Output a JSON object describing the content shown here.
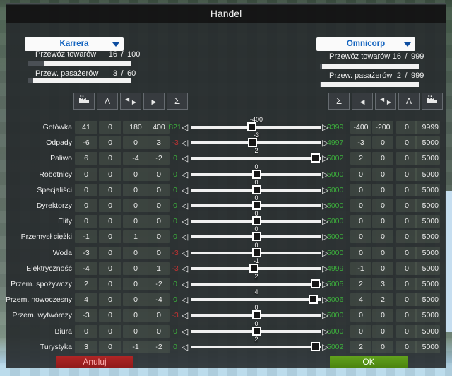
{
  "title": "Handel",
  "colors": {
    "positive_green": "#3cae3c",
    "negative_red": "#c03232",
    "accent_blue": "#1565c0",
    "cancel_red": "#a02020",
    "ok_green": "#55901a"
  },
  "left_panel": {
    "dropdown_value": "Karrera",
    "stats": [
      {
        "label": "Przewóz towarów",
        "value": "16",
        "max": "100",
        "pct": 16
      },
      {
        "label": "Przew. pasażerów",
        "value": "3",
        "max": "60",
        "pct": 5
      }
    ],
    "icons": [
      "factory",
      "compass",
      "transfer-arrows",
      "send-right",
      "sum"
    ]
  },
  "right_panel": {
    "dropdown_value": "Omnicorp",
    "stats": [
      {
        "label": "Przewóz towarów",
        "value": "16",
        "max": "999",
        "pct": 2
      },
      {
        "label": "Przew. pasażerów",
        "value": "2",
        "max": "999",
        "pct": 1
      }
    ],
    "icons": [
      "sum",
      "send-left",
      "transfer-arrows",
      "compass",
      "factory"
    ]
  },
  "rows": [
    {
      "label": "Gotówka",
      "c1": "41",
      "c2": "0",
      "c3": "180",
      "c4": "400",
      "net_l": "821",
      "sval": "-400",
      "pos": 46,
      "net_r": "9399",
      "r1": "-400",
      "r2": "-200",
      "r3": "0",
      "max": "9999"
    },
    {
      "label": "Odpady",
      "c1": "-6",
      "c2": "0",
      "c3": "0",
      "c4": "3",
      "net_l": "-3",
      "sval": "-3",
      "pos": 47,
      "net_r": "4997",
      "r1": "-3",
      "r2": "0",
      "r3": "0",
      "max": "5000"
    },
    {
      "label": "Paliwo",
      "c1": "6",
      "c2": "0",
      "c3": "-4",
      "c4": "-2",
      "net_l": "0",
      "sval": "2",
      "pos": 99,
      "net_r": "5002",
      "r1": "2",
      "r2": "0",
      "r3": "0",
      "max": "5000"
    },
    {
      "label": "Robotnicy",
      "c1": "0",
      "c2": "0",
      "c3": "0",
      "c4": "0",
      "net_l": "0",
      "sval": "0",
      "pos": 50,
      "net_r": "5000",
      "r1": "0",
      "r2": "0",
      "r3": "0",
      "max": "5000"
    },
    {
      "label": "Specjaliści",
      "c1": "0",
      "c2": "0",
      "c3": "0",
      "c4": "0",
      "net_l": "0",
      "sval": "0",
      "pos": 50,
      "net_r": "5000",
      "r1": "0",
      "r2": "0",
      "r3": "0",
      "max": "5000"
    },
    {
      "label": "Dyrektorzy",
      "c1": "0",
      "c2": "0",
      "c3": "0",
      "c4": "0",
      "net_l": "0",
      "sval": "0",
      "pos": 50,
      "net_r": "5000",
      "r1": "0",
      "r2": "0",
      "r3": "0",
      "max": "5000"
    },
    {
      "label": "Elity",
      "c1": "0",
      "c2": "0",
      "c3": "0",
      "c4": "0",
      "net_l": "0",
      "sval": "0",
      "pos": 50,
      "net_r": "5000",
      "r1": "0",
      "r2": "0",
      "r3": "0",
      "max": "5000"
    },
    {
      "label": "Przemysł ciężki",
      "c1": "-1",
      "c2": "0",
      "c3": "1",
      "c4": "0",
      "net_l": "0",
      "sval": "0",
      "pos": 50,
      "net_r": "5000",
      "r1": "0",
      "r2": "0",
      "r3": "0",
      "max": "5000"
    },
    {
      "label": "Woda",
      "c1": "-3",
      "c2": "0",
      "c3": "0",
      "c4": "0",
      "net_l": "-3",
      "sval": "0",
      "pos": 50,
      "net_r": "5000",
      "r1": "0",
      "r2": "0",
      "r3": "0",
      "max": "5000"
    },
    {
      "label": "Elektryczność",
      "c1": "-4",
      "c2": "0",
      "c3": "0",
      "c4": "1",
      "net_l": "-3",
      "sval": "-1",
      "pos": 48,
      "net_r": "4999",
      "r1": "-1",
      "r2": "0",
      "r3": "0",
      "max": "5000"
    },
    {
      "label": "Przem. spożywczy",
      "c1": "2",
      "c2": "0",
      "c3": "0",
      "c4": "-2",
      "net_l": "0",
      "sval": "2",
      "pos": 99,
      "net_r": "5005",
      "r1": "2",
      "r2": "3",
      "r3": "0",
      "max": "5000"
    },
    {
      "label": "Przem. nowoczesny",
      "c1": "4",
      "c2": "0",
      "c3": "0",
      "c4": "-4",
      "net_l": "0",
      "sval": "4",
      "pos": 97,
      "net_r": "5006",
      "r1": "4",
      "r2": "2",
      "r3": "0",
      "max": "5000"
    },
    {
      "label": "Przem. wytwórczy",
      "c1": "-3",
      "c2": "0",
      "c3": "0",
      "c4": "0",
      "net_l": "-3",
      "sval": "0",
      "pos": 50,
      "net_r": "5000",
      "r1": "0",
      "r2": "0",
      "r3": "0",
      "max": "5000"
    },
    {
      "label": "Biura",
      "c1": "0",
      "c2": "0",
      "c3": "0",
      "c4": "0",
      "net_l": "0",
      "sval": "0",
      "pos": 50,
      "net_r": "5000",
      "r1": "0",
      "r2": "0",
      "r3": "0",
      "max": "5000"
    },
    {
      "label": "Turystyka",
      "c1": "3",
      "c2": "0",
      "c3": "-1",
      "c4": "-2",
      "net_l": "0",
      "sval": "2",
      "pos": 99,
      "net_r": "5002",
      "r1": "2",
      "r2": "0",
      "r3": "0",
      "max": "5000"
    }
  ],
  "buttons": {
    "cancel": "Anuluj",
    "ok": "OK"
  }
}
